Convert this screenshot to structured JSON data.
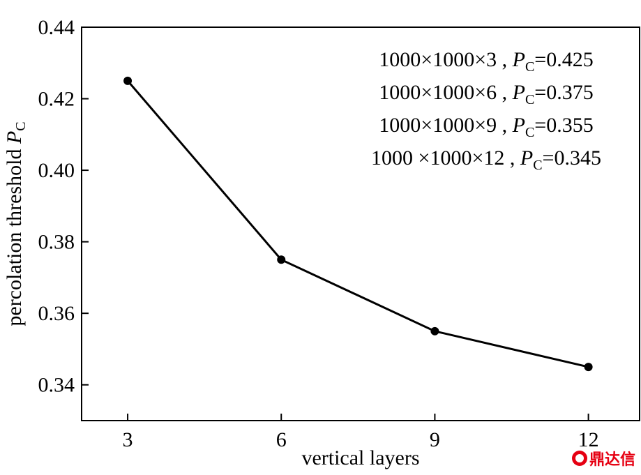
{
  "chart_data": {
    "type": "line",
    "x": [
      3,
      6,
      9,
      12
    ],
    "series": [
      {
        "values": [
          0.425,
          0.375,
          0.355,
          0.345
        ]
      }
    ],
    "xlabel": "vertical layers",
    "ylabel": {
      "text": "percolation threshold ",
      "symbol": "P",
      "subscript": "C"
    },
    "xticks": [
      "3",
      "6",
      "9",
      "12"
    ],
    "yticks": [
      "0.34",
      "0.36",
      "0.38",
      "0.40",
      "0.42",
      "0.44"
    ],
    "xlim": [
      2.1,
      13.0
    ],
    "ylim": [
      0.33,
      0.44
    ],
    "grid": false,
    "line_color": "#000000",
    "annotations": [
      {
        "prefix": "1000×1000×3 , ",
        "symbol": "P",
        "subscript": "C",
        "value": "=0.425"
      },
      {
        "prefix": "1000×1000×6 , ",
        "symbol": "P",
        "subscript": "C",
        "value": "=0.375"
      },
      {
        "prefix": "1000×1000×9 , ",
        "symbol": "P",
        "subscript": "C",
        "value": "=0.355"
      },
      {
        "prefix": "1000 ×1000×12 , ",
        "symbol": "P",
        "subscript": "C",
        "value": "=0.345"
      }
    ]
  },
  "watermark": {
    "text": "鼎达信",
    "color": "#e60012"
  }
}
